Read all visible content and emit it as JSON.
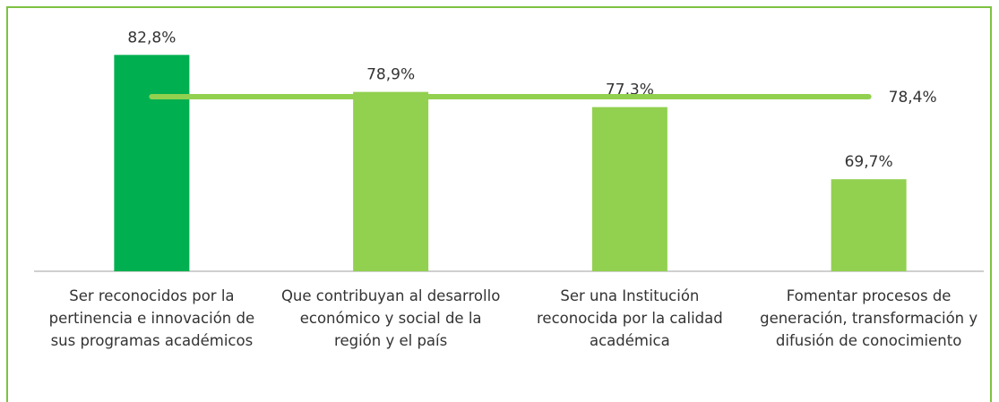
{
  "chart_data": {
    "type": "bar",
    "categories": [
      "Ser reconocidos por la pertinencia e innovación de sus programas académicos",
      "Que contribuyan al desarrollo económico y social de la región y el país",
      "Ser una Institución reconocida por la calidad académica",
      "Fomentar procesos de generación, transformación y difusión de conocimiento"
    ],
    "values": [
      82.8,
      78.9,
      77.3,
      69.7
    ],
    "value_labels": [
      "82,8%",
      "78,9%",
      "77,3%",
      "69,7%"
    ],
    "colors": [
      "#00b050",
      "#92d050",
      "#92d050",
      "#92d050"
    ],
    "average": 78.4,
    "average_label": "78,4%",
    "average_color": "#92d050",
    "ylim": [
      60,
      85
    ]
  }
}
